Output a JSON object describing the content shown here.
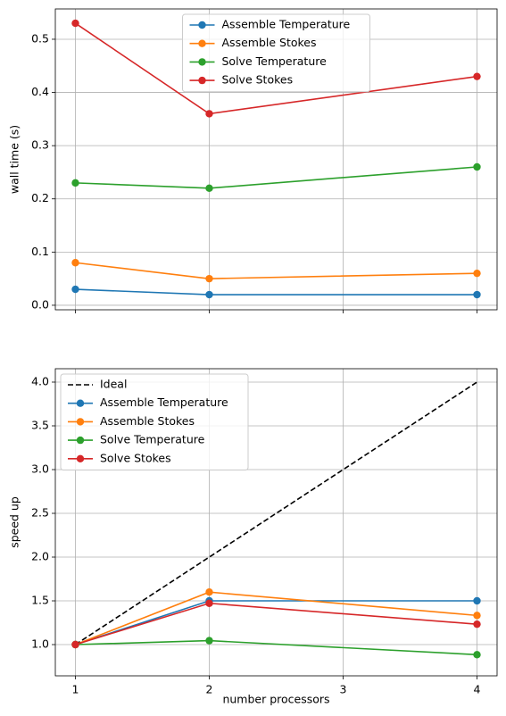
{
  "chart_data": [
    {
      "type": "line",
      "ylabel": "wall time (s)",
      "x": [
        1,
        2,
        4
      ],
      "series": [
        {
          "name": "Assemble Temperature",
          "color": "#1f77b4",
          "marker": "o",
          "values": [
            0.03,
            0.02,
            0.02
          ]
        },
        {
          "name": "Assemble Stokes",
          "color": "#ff7f0e",
          "marker": "o",
          "values": [
            0.08,
            0.05,
            0.06
          ]
        },
        {
          "name": "Solve Temperature",
          "color": "#2ca02c",
          "marker": "o",
          "values": [
            0.23,
            0.22,
            0.26
          ]
        },
        {
          "name": "Solve Stokes",
          "color": "#d62728",
          "marker": "o",
          "values": [
            0.53,
            0.36,
            0.43
          ]
        }
      ],
      "xlim": [
        0.85,
        4.15
      ],
      "xticks": [
        1,
        2,
        3,
        4
      ],
      "show_xtick_labels": false,
      "ylim": [
        -0.0085,
        0.557
      ],
      "yticks": [
        {
          "value": 0,
          "label": "0.0"
        },
        0.1,
        0.2,
        0.3,
        0.4,
        0.5
      ],
      "grid": true,
      "legend": "upper center"
    },
    {
      "type": "line",
      "ylabel": "speed up",
      "xlabel": "number processors",
      "x": [
        1,
        2,
        4
      ],
      "series": [
        {
          "name": "Ideal",
          "color": "#000000",
          "linestyle": "dashed",
          "values": [
            1,
            2,
            4
          ]
        },
        {
          "name": "Assemble Temperature",
          "color": "#1f77b4",
          "marker": "o",
          "values": [
            1,
            1.5,
            1.5
          ]
        },
        {
          "name": "Assemble Stokes",
          "color": "#ff7f0e",
          "marker": "o",
          "values": [
            1,
            1.6,
            1.333
          ]
        },
        {
          "name": "Solve Temperature",
          "color": "#2ca02c",
          "marker": "o",
          "values": [
            1,
            1.045,
            0.885
          ]
        },
        {
          "name": "Solve Stokes",
          "color": "#d62728",
          "marker": "o",
          "values": [
            1,
            1.472,
            1.233
          ]
        }
      ],
      "xlim": [
        0.85,
        4.15
      ],
      "xticks": [
        1,
        2,
        3,
        4
      ],
      "show_xtick_labels": true,
      "ylim": [
        0.643,
        4.153
      ],
      "yticks": [
        {
          "value": 1,
          "label": "1.0"
        },
        1.5,
        {
          "value": 2,
          "label": "2.0"
        },
        2.5,
        {
          "value": 3,
          "label": "3.0"
        },
        3.5,
        {
          "value": 4,
          "label": "4.0"
        }
      ],
      "grid": true,
      "legend": "upper left"
    }
  ]
}
